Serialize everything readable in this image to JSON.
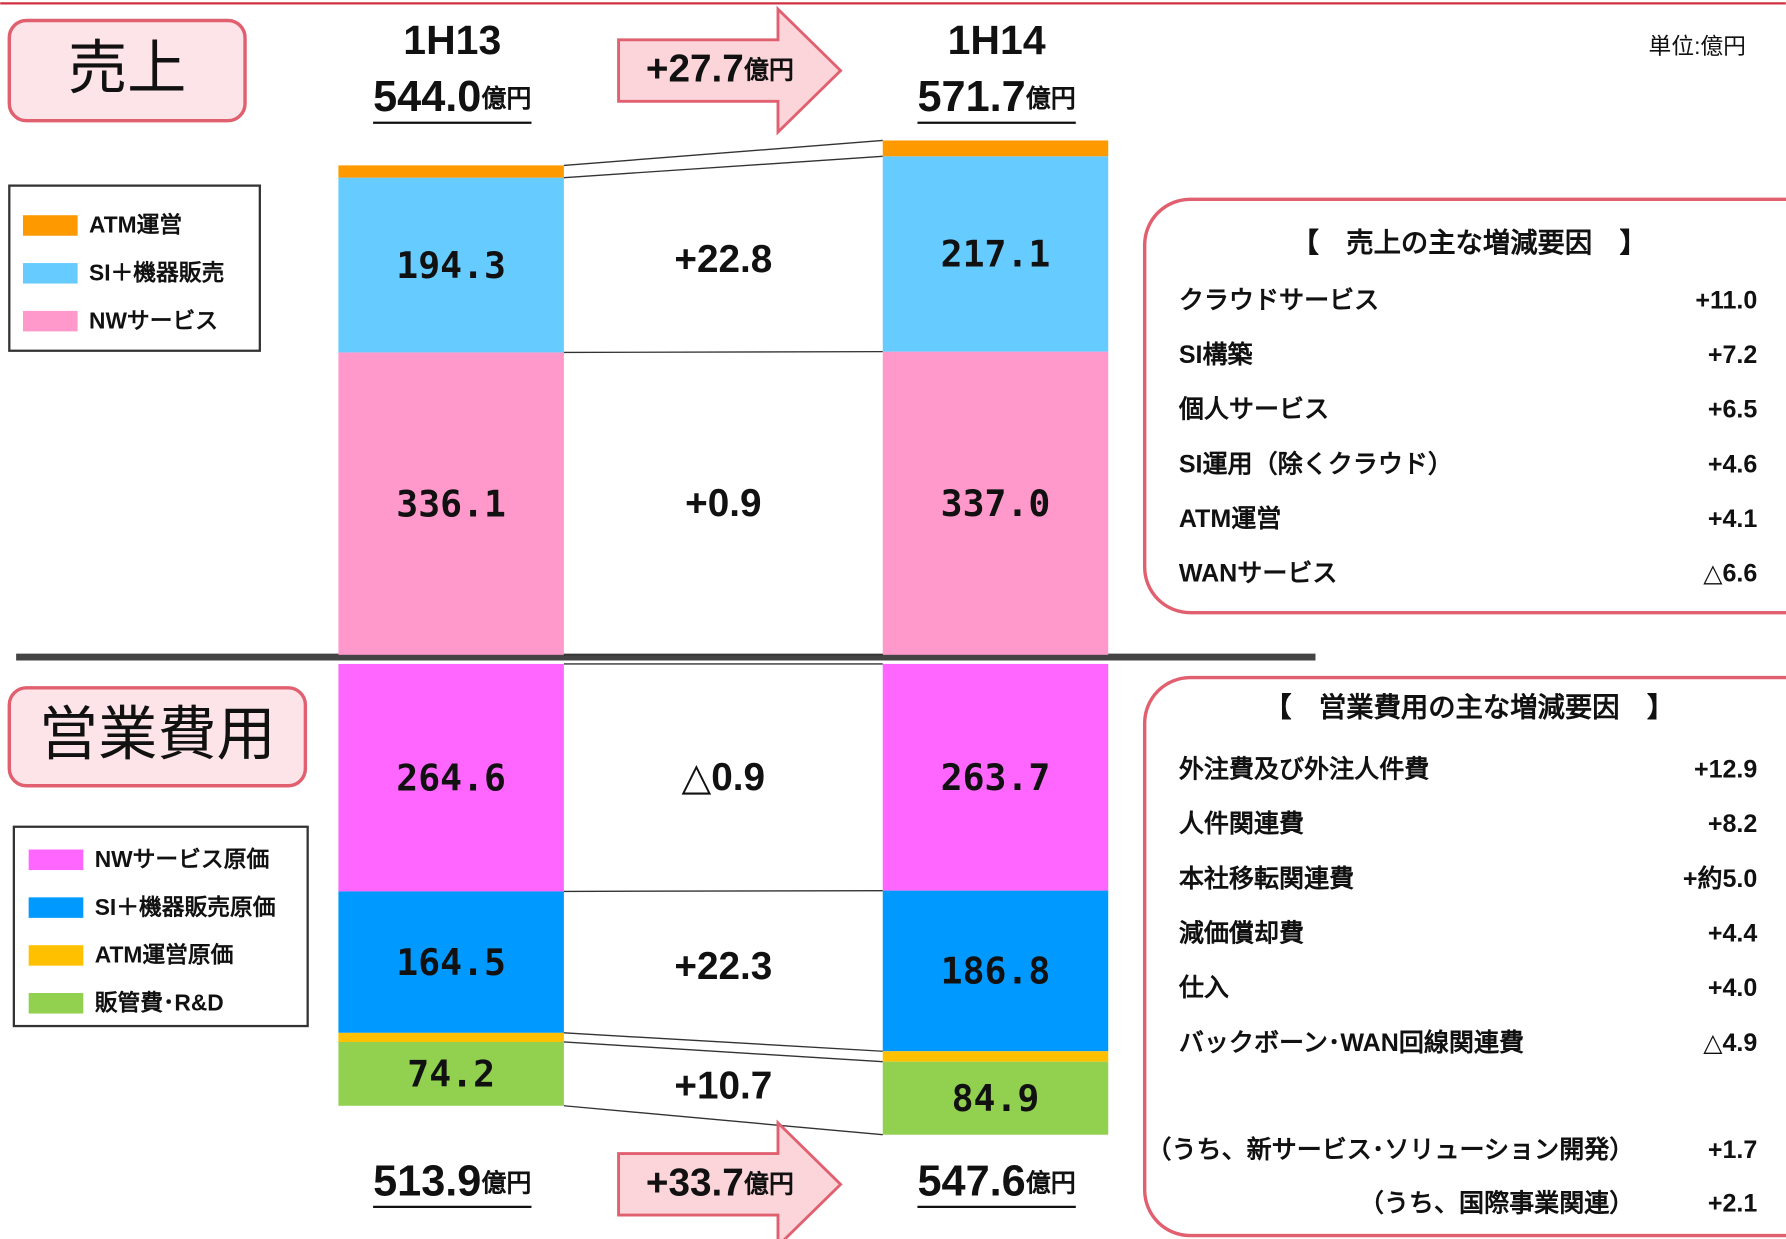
{
  "unit": "単位:億円",
  "chart_data": [
    {
      "type": "stacked_bar",
      "title": "売上",
      "categories": [
        "1H13",
        "1H14"
      ],
      "totals": [
        544.0,
        571.7
      ],
      "total_labels": [
        "544.0",
        "571.7"
      ],
      "total_unit": "億円",
      "change_label": "+27.7",
      "change_unit": "億円",
      "series": [
        {
          "name": "NWサービス",
          "color": "#ff99cc",
          "values": [
            336.1,
            337.0
          ],
          "value_labels": [
            "336.1",
            "337.0"
          ],
          "change_label": "+0.9"
        },
        {
          "name": "SI＋機器販売",
          "color": "#66ccff",
          "values": [
            194.3,
            217.1
          ],
          "value_labels": [
            "194.3",
            "217.1"
          ],
          "change_label": "+22.8"
        },
        {
          "name": "ATM運営",
          "color": "#ff9900",
          "values": [
            13.6,
            17.6
          ]
        }
      ]
    },
    {
      "type": "stacked_bar",
      "title": "営業費用",
      "totals": [
        513.9,
        547.6
      ],
      "total_labels": [
        "513.9",
        "547.6"
      ],
      "total_unit": "億円",
      "change_label": "+33.7",
      "change_unit": "億円",
      "series": [
        {
          "name": "NWサービス原価",
          "color": "#ff66ff",
          "values": [
            264.6,
            263.7
          ],
          "value_labels": [
            "264.6",
            "263.7"
          ],
          "change_label": "△0.9"
        },
        {
          "name": "SI＋機器販売原価",
          "color": "#0099ff",
          "values": [
            164.5,
            186.8
          ],
          "value_labels": [
            "164.5",
            "186.8"
          ],
          "change_label": "+22.3"
        },
        {
          "name": "ATM運営原価",
          "color": "#ffc000",
          "values": [
            10.6,
            12.2
          ]
        },
        {
          "name": "販管費･R&D",
          "color": "#92d050",
          "values": [
            74.2,
            84.9
          ],
          "value_labels": [
            "74.2",
            "84.9"
          ],
          "change_label": "+10.7"
        }
      ]
    }
  ],
  "revenue_factors": {
    "title": "【　売上の主な増減要因　】",
    "items": [
      [
        "クラウドサービス",
        "+11.0"
      ],
      [
        "SI構築",
        "+7.2"
      ],
      [
        "個人サービス",
        "+6.5"
      ],
      [
        "SI運用（除くクラウド）",
        "+4.6"
      ],
      [
        "ATM運営",
        "+4.1"
      ],
      [
        "WANサービス",
        "△6.6"
      ]
    ]
  },
  "cost_factors": {
    "title": "【　営業費用の主な増減要因　】",
    "items": [
      [
        "外注費及び外注人件費",
        "+12.9"
      ],
      [
        "人件関連費",
        "+8.2"
      ],
      [
        "本社移転関連費",
        "+約5.0"
      ],
      [
        "減価償却費",
        "+4.4"
      ],
      [
        "仕入",
        "+4.0"
      ],
      [
        "バックボーン･WAN回線関連費",
        "△4.9"
      ]
    ],
    "sub_items": [
      [
        "（うち、新サービス･ソリューション開発）",
        "+1.7"
      ],
      [
        "（うち、国際事業関連）",
        "+2.1"
      ]
    ]
  }
}
